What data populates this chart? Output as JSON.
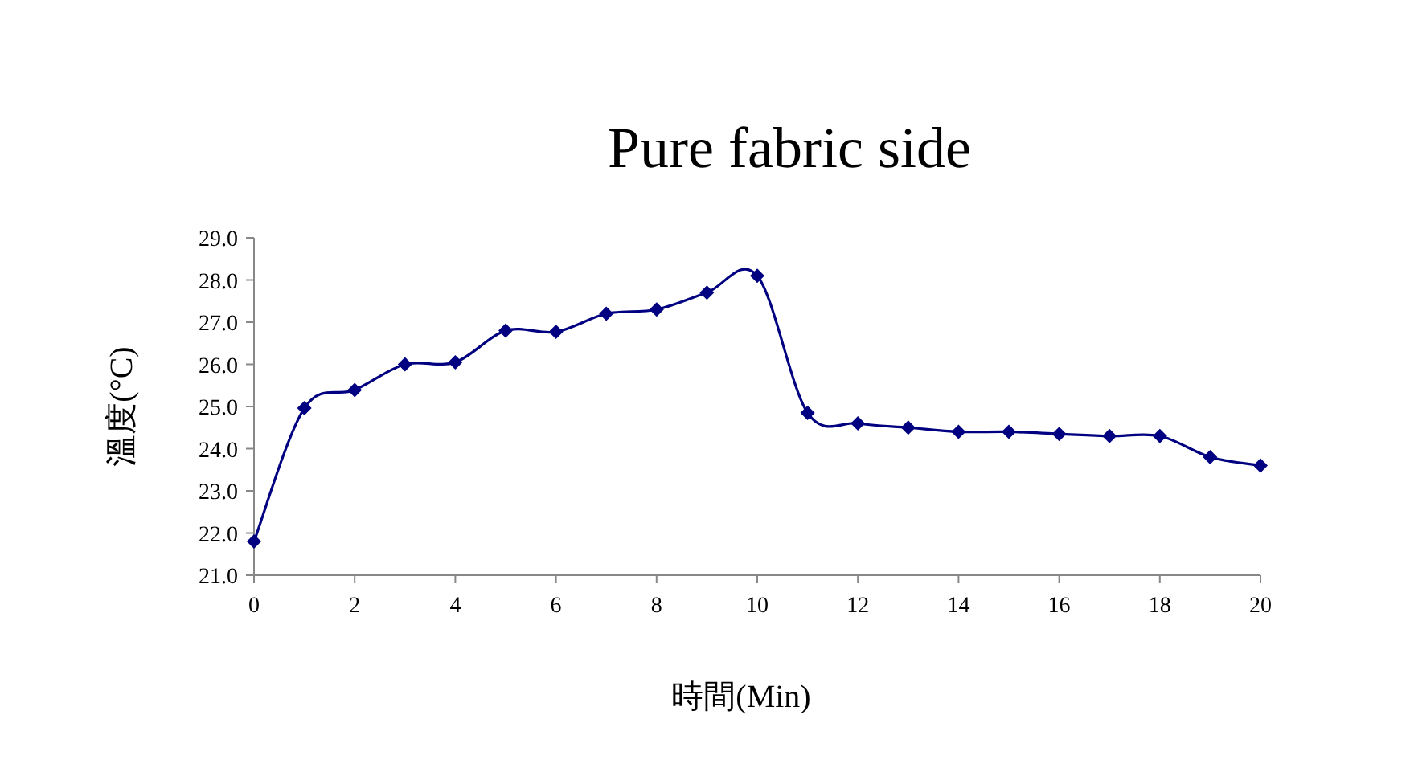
{
  "chart_data": {
    "type": "line",
    "title": "Pure fabric side",
    "xlabel": "時間(Min)",
    "ylabel": "溫度(°C)",
    "x": [
      0,
      1,
      2,
      3,
      4,
      5,
      6,
      7,
      8,
      9,
      10,
      11,
      12,
      13,
      14,
      15,
      16,
      17,
      18,
      19,
      20
    ],
    "series": [
      {
        "color": "#000080",
        "values": [
          21.8,
          24.96,
          25.39,
          26.0,
          26.05,
          26.8,
          26.77,
          27.2,
          27.3,
          27.7,
          28.1,
          24.85,
          24.6,
          24.5,
          24.4,
          24.4,
          24.35,
          24.3,
          24.3,
          23.8,
          23.6
        ]
      }
    ],
    "xlim": [
      0,
      20
    ],
    "xticks": [
      0,
      2,
      4,
      6,
      8,
      10,
      12,
      14,
      16,
      18,
      20
    ],
    "ylim": [
      21,
      29
    ],
    "yticks": [
      {
        "value": 21,
        "label": "21.0"
      },
      {
        "value": 22,
        "label": "22.0"
      },
      {
        "value": 23,
        "label": "23.0"
      },
      {
        "value": 24,
        "label": "24.0"
      },
      {
        "value": 25,
        "label": "25.0"
      },
      {
        "value": 26,
        "label": "26.0"
      },
      {
        "value": 27,
        "label": "27.0"
      },
      {
        "value": 28,
        "label": "28.0"
      },
      {
        "value": 29,
        "label": "29.0"
      }
    ],
    "marker": "diamond",
    "line_style": "solid"
  }
}
